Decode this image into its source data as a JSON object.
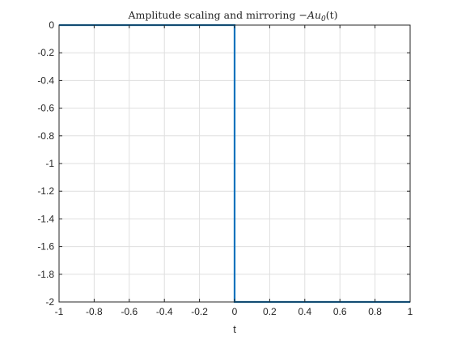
{
  "chart_data": {
    "type": "line",
    "title_prefix": "Amplitude scaling and mirroring ",
    "title_math": "−Au",
    "title_math_sub": "0",
    "title_math_suffix": "(t)",
    "xlabel": "t",
    "ylabel": "",
    "xlim": [
      -1,
      1
    ],
    "ylim": [
      -2,
      0
    ],
    "grid": true,
    "xticks": [
      -1,
      -0.8,
      -0.6,
      -0.4,
      -0.2,
      0,
      0.2,
      0.4,
      0.6,
      0.8,
      1
    ],
    "xtick_labels": [
      "-1",
      "-0.8",
      "-0.6",
      "-0.4",
      "-0.2",
      "0",
      "0.2",
      "0.4",
      "0.6",
      "0.8",
      "1"
    ],
    "yticks": [
      0,
      -0.2,
      -0.4,
      -0.6,
      -0.8,
      -1,
      -1.2,
      -1.4,
      -1.6,
      -1.8,
      -2
    ],
    "ytick_labels": [
      "0",
      "-0.2",
      "-0.4",
      "-0.6",
      "-0.8",
      "-1",
      "-1.2",
      "-1.4",
      "-1.6",
      "-1.8",
      "-2"
    ],
    "series": [
      {
        "color": "#0072bd",
        "x": [
          -1,
          0,
          0,
          1
        ],
        "y": [
          0,
          0,
          -2,
          -2
        ]
      }
    ]
  }
}
